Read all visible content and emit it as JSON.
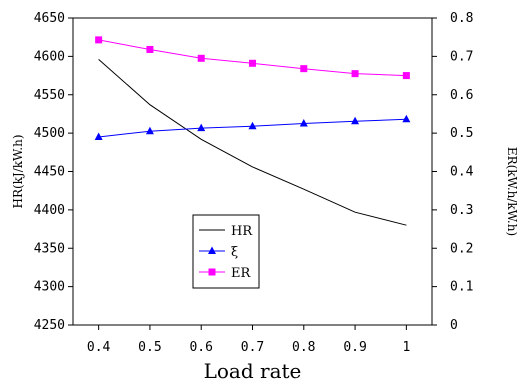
{
  "chart_data": {
    "type": "line",
    "title": "",
    "xlabel": "Load rate",
    "ylabel_left": "HR(kJ/kW.h)",
    "ylabel_right": "ER(kW.h/kW.h)",
    "x": [
      0.4,
      0.5,
      0.6,
      0.7,
      0.8,
      0.9,
      1.0
    ],
    "x_tick_labels": [
      "0.4",
      "0.5",
      "0.6",
      "0.7",
      "0.8",
      "0.9",
      "1"
    ],
    "ylim_left": [
      4250,
      4650
    ],
    "y_left_ticks": [
      "4250",
      "4300",
      "4350",
      "4400",
      "4450",
      "4500",
      "4550",
      "4600",
      "4650"
    ],
    "ylim_right": [
      0,
      0.8
    ],
    "y_right_ticks": [
      "0",
      "0.1",
      "0.2",
      "0.3",
      "0.4",
      "0.5",
      "0.6",
      "0.7",
      "0.8"
    ],
    "grid": false,
    "legend_position": "bottom-center",
    "series": [
      {
        "name": "HR",
        "axis": "left",
        "color": "#000000",
        "marker": "none",
        "values": [
          4596,
          4537,
          4492,
          4456,
          4427,
          4397,
          4380
        ]
      },
      {
        "name": "ξ",
        "axis": "right",
        "color": "#0000ff",
        "marker": "triangle",
        "values": [
          0.49,
          0.505,
          0.513,
          0.518,
          0.525,
          0.531,
          0.536
        ]
      },
      {
        "name": "ER",
        "axis": "right",
        "color": "#ff00ff",
        "marker": "square",
        "values": [
          0.743,
          0.718,
          0.695,
          0.682,
          0.668,
          0.655,
          0.65
        ]
      }
    ]
  }
}
